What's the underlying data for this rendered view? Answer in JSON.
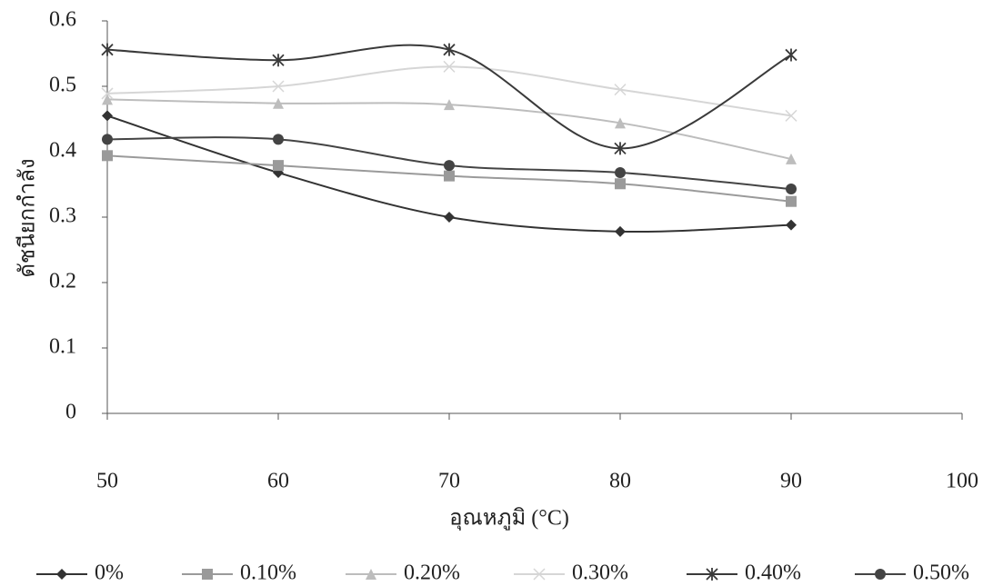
{
  "chart_data": {
    "type": "line",
    "x_label": "อุณหภูมิ (°C)",
    "y_label": "ดัชนียกกำลัง",
    "x": [
      50,
      60,
      70,
      80,
      90
    ],
    "xlim": [
      50,
      100
    ],
    "xticks": [
      50,
      60,
      70,
      80,
      90,
      100
    ],
    "ylim": [
      0,
      0.6
    ],
    "yticks": [
      0,
      0.1,
      0.2,
      0.3,
      0.4,
      0.5,
      0.6
    ],
    "legend": "bottom",
    "series": [
      {
        "name": "0%",
        "color": "#333333",
        "marker": "diamond",
        "values": [
          0.455,
          0.368,
          0.3,
          0.278,
          0.288
        ]
      },
      {
        "name": "0.10%",
        "color": "#9a9a9a",
        "marker": "square",
        "values": [
          0.394,
          0.379,
          0.363,
          0.351,
          0.324
        ]
      },
      {
        "name": "0.20%",
        "color": "#bdbdbd",
        "marker": "triangle",
        "values": [
          0.48,
          0.474,
          0.472,
          0.444,
          0.389
        ]
      },
      {
        "name": "0.30%",
        "color": "#d6d6d6",
        "marker": "cross",
        "values": [
          0.489,
          0.5,
          0.53,
          0.495,
          0.455
        ]
      },
      {
        "name": "0.40%",
        "color": "#3a3a3a",
        "marker": "star",
        "values": [
          0.556,
          0.54,
          0.556,
          0.405,
          0.548
        ]
      },
      {
        "name": "0.50%",
        "color": "#444444",
        "marker": "circle",
        "values": [
          0.419,
          0.419,
          0.379,
          0.368,
          0.343
        ]
      }
    ]
  }
}
